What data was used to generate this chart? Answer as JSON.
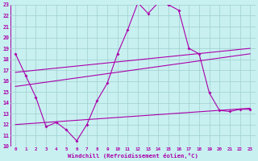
{
  "xlabel": "Windchill (Refroidissement éolien,°C)",
  "xlim": [
    -0.5,
    23.5
  ],
  "ylim": [
    10,
    23
  ],
  "bg_color": "#c8f0f0",
  "grid_color": "#a0cece",
  "line_color": "#aa00aa",
  "line1_x": [
    0,
    1,
    2,
    3,
    4,
    5,
    6,
    7,
    8,
    9,
    10,
    11,
    12,
    13,
    14,
    15,
    16,
    17,
    18,
    19,
    20,
    21,
    22,
    23
  ],
  "line1_y": [
    18.5,
    16.5,
    14.5,
    11.8,
    12.2,
    11.5,
    10.5,
    12.0,
    14.2,
    15.8,
    18.5,
    20.7,
    23.2,
    22.2,
    23.2,
    23.0,
    22.5,
    19.0,
    18.5,
    14.9,
    13.3,
    13.2,
    13.4,
    13.4
  ],
  "line2_x": [
    0,
    23
  ],
  "line2_y": [
    16.8,
    19.0
  ],
  "line3_x": [
    0,
    23
  ],
  "line3_y": [
    15.5,
    18.5
  ],
  "line4_x": [
    0,
    23
  ],
  "line4_y": [
    12.0,
    13.5
  ],
  "xticks": [
    0,
    1,
    2,
    3,
    4,
    5,
    6,
    7,
    8,
    9,
    10,
    11,
    12,
    13,
    14,
    15,
    16,
    17,
    18,
    19,
    20,
    21,
    22,
    23
  ],
  "yticks": [
    10,
    11,
    12,
    13,
    14,
    15,
    16,
    17,
    18,
    19,
    20,
    21,
    22,
    23
  ]
}
